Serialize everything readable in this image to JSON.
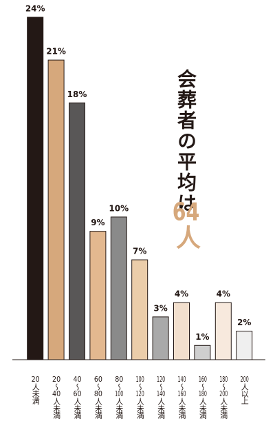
{
  "chart_data": {
    "type": "bar",
    "title": "会葬者の平均は",
    "annotation": "64人",
    "categories": [
      "20人未満",
      "20～40人未満",
      "40～60人未満",
      "60～80人未満",
      "80～100人未満",
      "100～120人未満",
      "120～140人未満",
      "140～160人未満",
      "160～180人未満",
      "180～200人未満",
      "200人以上"
    ],
    "values": [
      24,
      21,
      18,
      9,
      10,
      7,
      3,
      4,
      1,
      4,
      2
    ],
    "value_labels": [
      "24%",
      "21%",
      "18%",
      "9%",
      "10%",
      "7%",
      "3%",
      "4%",
      "1%",
      "4%",
      "2%"
    ],
    "colors": [
      "#231815",
      "#d6a87c",
      "#595757",
      "#e3b88f",
      "#8a8a8a",
      "#ebcdaa",
      "#a9a9a9",
      "#f2dfcd",
      "#cfcfcf",
      "#f7e9dd",
      "#efefef"
    ],
    "ylim": [
      0,
      24
    ]
  }
}
